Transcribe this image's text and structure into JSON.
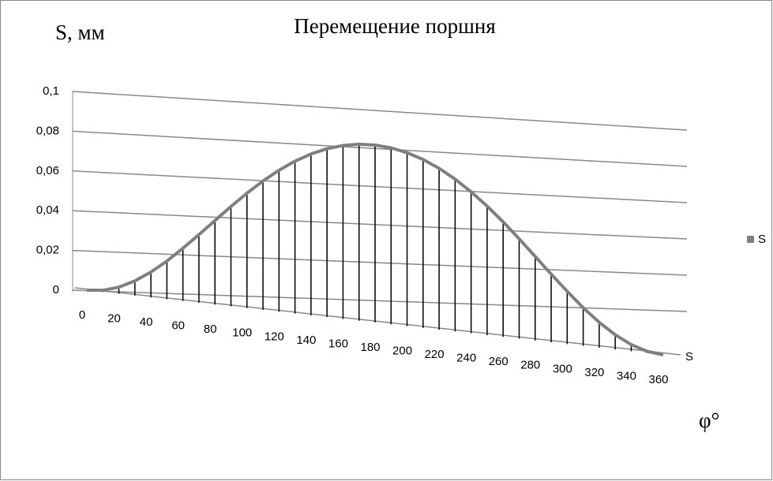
{
  "chart_data": {
    "type": "line3d",
    "title": "Перемещение поршня",
    "y_label": "S, мм",
    "x_label": "φ°",
    "depth_label": "S",
    "categories": [
      0,
      null,
      20,
      null,
      40,
      null,
      60,
      null,
      80,
      null,
      100,
      null,
      120,
      null,
      140,
      null,
      160,
      null,
      180,
      null,
      200,
      null,
      220,
      null,
      240,
      null,
      260,
      null,
      280,
      null,
      300,
      null,
      320,
      null,
      340,
      null,
      360
    ],
    "series": [
      {
        "name": "S",
        "color": "#7f7f7f",
        "values": [
          0,
          0.0007,
          0.0028,
          0.0062,
          0.0107,
          0.0161,
          0.0223,
          0.0288,
          0.0355,
          0.0422,
          0.0486,
          0.0545,
          0.0598,
          0.0644,
          0.0682,
          0.0712,
          0.0733,
          0.0746,
          0.075,
          0.0746,
          0.0733,
          0.0712,
          0.0682,
          0.0644,
          0.0598,
          0.0545,
          0.0486,
          0.0422,
          0.0355,
          0.0288,
          0.0223,
          0.0161,
          0.0107,
          0.0062,
          0.0028,
          0.0007,
          0
        ]
      }
    ],
    "ylim": [
      0,
      0.1
    ],
    "yticks": [
      0,
      {
        "value": 0.02,
        "label": "0,02"
      },
      {
        "value": 0.04,
        "label": "0,04"
      },
      {
        "value": 0.06,
        "label": "0,06"
      },
      {
        "value": 0.08,
        "label": "0,08"
      },
      {
        "value": 0.1,
        "label": "0,1"
      }
    ],
    "grid": true,
    "drop_lines": true,
    "legend": "right"
  }
}
